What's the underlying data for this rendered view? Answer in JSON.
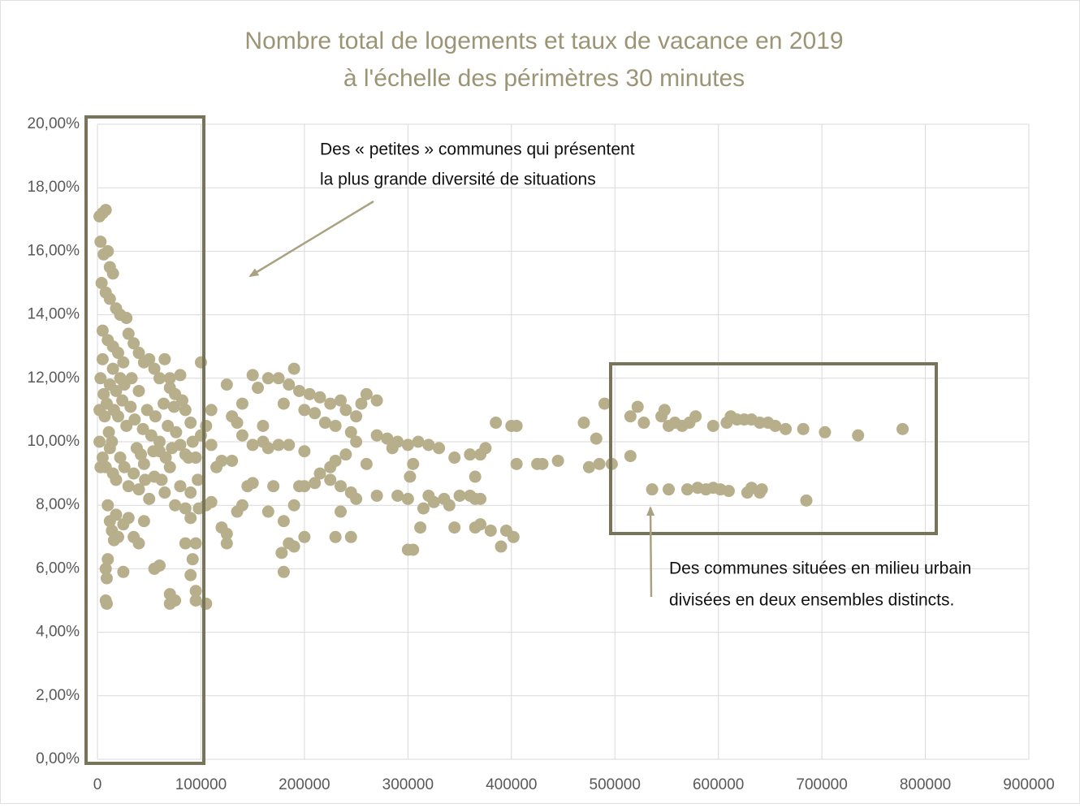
{
  "chart_data": {
    "type": "scatter",
    "title": [
      "Nombre total de logements et taux de vacance en 2019",
      "à l'échelle des périmètres 30 minutes"
    ],
    "annotations": [
      {
        "lines": [
          "Des « petites » communes qui présentent",
          "la plus grande diversité de situations"
        ]
      },
      {
        "lines": [
          "Des communes situées en milieu urbain",
          "divisées en deux ensembles distincts."
        ]
      }
    ],
    "color": "#b7af8b",
    "grid": true,
    "xlim": [
      0,
      900000
    ],
    "xticks": [
      0,
      100000,
      200000,
      300000,
      400000,
      500000,
      600000,
      700000,
      800000,
      900000
    ],
    "ylim": [
      0,
      20
    ],
    "yticks": [
      {
        "value": 0,
        "label": "0,00%"
      },
      {
        "value": 2,
        "label": "2,00%"
      },
      {
        "value": 4,
        "label": "4,00%"
      },
      {
        "value": 6,
        "label": "6,00%"
      },
      {
        "value": 8,
        "label": "8,00%"
      },
      {
        "value": 10,
        "label": "10,00%"
      },
      {
        "value": 12,
        "label": "12,00%"
      },
      {
        "value": 14,
        "label": "14,00%"
      },
      {
        "value": 16,
        "label": "16,00%"
      },
      {
        "value": 18,
        "label": "18,00%"
      },
      {
        "value": 20,
        "label": "20,00%"
      }
    ],
    "x": [
      490000,
      515000,
      522000,
      528000,
      545000,
      548000,
      552000,
      558000,
      565000,
      572000,
      578000,
      595000,
      608000,
      612000,
      618000,
      625000,
      632000,
      640000,
      648000,
      655000,
      665000,
      682000,
      703000,
      735000,
      778000,
      536000,
      552000,
      570000,
      580000,
      588000,
      595000,
      602000,
      610000,
      628000,
      632000,
      640000,
      642000,
      685000,
      515000,
      470000,
      482000,
      475000,
      485000,
      497000,
      445000,
      430000,
      425000,
      405000,
      400000,
      385000,
      405000,
      402000,
      395000,
      390000,
      380000,
      370000,
      365000,
      345000,
      365000,
      360000,
      370000,
      350000,
      340000,
      335000,
      325000,
      320000,
      315000,
      300000,
      300000,
      305000,
      312000,
      365000,
      370000,
      375000,
      360000,
      345000,
      330000,
      320000,
      310000,
      300000,
      290000,
      280000,
      270000,
      285000,
      305000,
      302000,
      290000,
      270000,
      260000,
      260000,
      270000,
      255000,
      250000,
      240000,
      235000,
      225000,
      215000,
      205000,
      195000,
      185000,
      190000,
      175000,
      165000,
      150000,
      155000,
      180000,
      200000,
      210000,
      220000,
      230000,
      245000,
      250000,
      240000,
      230000,
      225000,
      215000,
      210000,
      200000,
      225000,
      235000,
      245000,
      250000,
      235000,
      245000,
      230000,
      200000,
      190000,
      185000,
      180000,
      178000,
      180000,
      190000,
      195000,
      200000,
      185000,
      175000,
      165000,
      160000,
      150000,
      140000,
      135000,
      130000,
      125000,
      140000,
      160000,
      170000,
      165000,
      150000,
      145000,
      140000,
      135000,
      125000,
      120000,
      110000,
      105000,
      125000,
      130000,
      120000,
      115000,
      110000,
      100000,
      105000,
      110000,
      100000,
      105000,
      95000,
      95000,
      90000,
      92000,
      95000,
      85000,
      75000,
      70000,
      70000,
      60000,
      55000,
      2000,
      5000,
      8000,
      3000,
      6000,
      10000,
      12000,
      15000,
      4000,
      8000,
      12000,
      18000,
      22000,
      28000,
      5000,
      10000,
      15000,
      20000,
      25000,
      30000,
      35000,
      40000,
      45000,
      50000,
      55000,
      60000,
      65000,
      70000,
      75000,
      80000,
      3000,
      6000,
      9000,
      12000,
      16000,
      20000,
      24000,
      28000,
      32000,
      36000,
      40000,
      44000,
      48000,
      52000,
      56000,
      60000,
      64000,
      68000,
      72000,
      76000,
      80000,
      85000,
      90000,
      2000,
      5000,
      8000,
      12000,
      15000,
      18000,
      22000,
      26000,
      30000,
      35000,
      40000,
      45000,
      50000,
      55000,
      60000,
      65000,
      70000,
      75000,
      80000,
      85000,
      90000,
      10000,
      12000,
      14000,
      16000,
      18000,
      20000,
      25000,
      30000,
      35000,
      40000,
      45000,
      10000,
      8000,
      9000,
      8000,
      9000,
      25000,
      15000,
      5000,
      2000,
      3000,
      7000,
      11000,
      14000,
      18000,
      22000,
      26000,
      33000,
      38000,
      42000,
      46000,
      54000,
      62000,
      66000,
      70000,
      74000,
      82000,
      88000,
      92000,
      95000,
      97000,
      98000,
      90000,
      85000
    ],
    "values": [
      11.2,
      10.8,
      11.1,
      10.6,
      10.8,
      11.0,
      10.5,
      10.6,
      10.5,
      10.6,
      10.8,
      10.5,
      10.6,
      10.8,
      10.7,
      10.7,
      10.7,
      10.6,
      10.6,
      10.5,
      10.4,
      10.4,
      10.3,
      10.2,
      10.4,
      8.5,
      8.5,
      8.5,
      8.55,
      8.5,
      8.55,
      8.5,
      8.45,
      8.4,
      8.55,
      8.4,
      8.5,
      8.15,
      9.55,
      10.6,
      10.1,
      9.2,
      9.3,
      9.3,
      9.4,
      9.3,
      9.3,
      10.5,
      10.5,
      10.6,
      9.3,
      7.0,
      7.2,
      6.7,
      7.2,
      7.4,
      7.3,
      7.3,
      8.2,
      8.3,
      8.2,
      8.3,
      8.0,
      8.2,
      8.1,
      8.3,
      7.9,
      8.2,
      6.6,
      6.6,
      7.3,
      8.9,
      9.6,
      9.8,
      9.6,
      9.5,
      9.8,
      9.9,
      10.0,
      9.9,
      10.0,
      10.1,
      10.2,
      9.8,
      9.3,
      8.9,
      8.3,
      8.3,
      9.3,
      11.5,
      11.3,
      11.2,
      10.8,
      11.0,
      11.3,
      11.2,
      11.4,
      11.5,
      11.6,
      11.8,
      12.3,
      12.0,
      12.0,
      12.1,
      11.7,
      11.2,
      11.0,
      10.9,
      10.6,
      10.5,
      10.3,
      10.0,
      9.6,
      9.4,
      9.2,
      9.0,
      8.7,
      8.6,
      8.8,
      8.6,
      8.4,
      8.2,
      7.8,
      7.0,
      7.0,
      7.0,
      6.7,
      6.8,
      5.9,
      6.5,
      7.5,
      8.0,
      8.6,
      9.7,
      9.9,
      9.9,
      9.8,
      10.0,
      9.9,
      10.2,
      10.6,
      10.8,
      11.8,
      11.2,
      10.5,
      8.6,
      7.8,
      8.7,
      8.6,
      8.0,
      7.8,
      7.1,
      7.3,
      8.1,
      8.0,
      6.8,
      9.4,
      9.4,
      9.2,
      9.9,
      10.2,
      10.5,
      11.0,
      12.5,
      4.9,
      5.0,
      5.3,
      5.8,
      6.3,
      6.8,
      6.8,
      5.0,
      4.9,
      5.2,
      6.1,
      6.0,
      17.1,
      17.2,
      17.3,
      16.3,
      15.9,
      16.0,
      15.5,
      15.3,
      15.0,
      14.7,
      14.5,
      14.2,
      14.0,
      13.9,
      13.5,
      13.2,
      13.0,
      12.8,
      12.5,
      13.4,
      13.1,
      12.8,
      12.5,
      12.6,
      12.3,
      12.0,
      12.6,
      12.0,
      11.5,
      12.1,
      12.0,
      11.5,
      11.2,
      11.8,
      11.0,
      10.8,
      11.3,
      10.5,
      11.1,
      10.7,
      11.6,
      10.4,
      11.0,
      10.2,
      10.8,
      10.0,
      11.2,
      10.5,
      9.8,
      10.3,
      9.9,
      11.0,
      10.6,
      10.0,
      9.5,
      9.2,
      9.8,
      9.0,
      8.8,
      9.5,
      9.2,
      8.6,
      9.0,
      8.5,
      9.3,
      8.2,
      8.9,
      9.7,
      8.4,
      9.2,
      8.0,
      8.6,
      7.9,
      8.4,
      8.0,
      7.5,
      7.2,
      6.9,
      7.7,
      7.0,
      7.4,
      7.6,
      7.0,
      6.8,
      7.5,
      6.3,
      6.0,
      5.7,
      5.0,
      4.9,
      5.9,
      12.3,
      12.6,
      11.0,
      9.2,
      10.8,
      10.3,
      10.0,
      11.6,
      12.0,
      11.8,
      12.0,
      9.8,
      9.6,
      8.8,
      9.7,
      8.8,
      9.5,
      11.7,
      11.1,
      11.3,
      9.5,
      10.0,
      9.5,
      8.8,
      7.9,
      7.6,
      9.6
    ]
  }
}
